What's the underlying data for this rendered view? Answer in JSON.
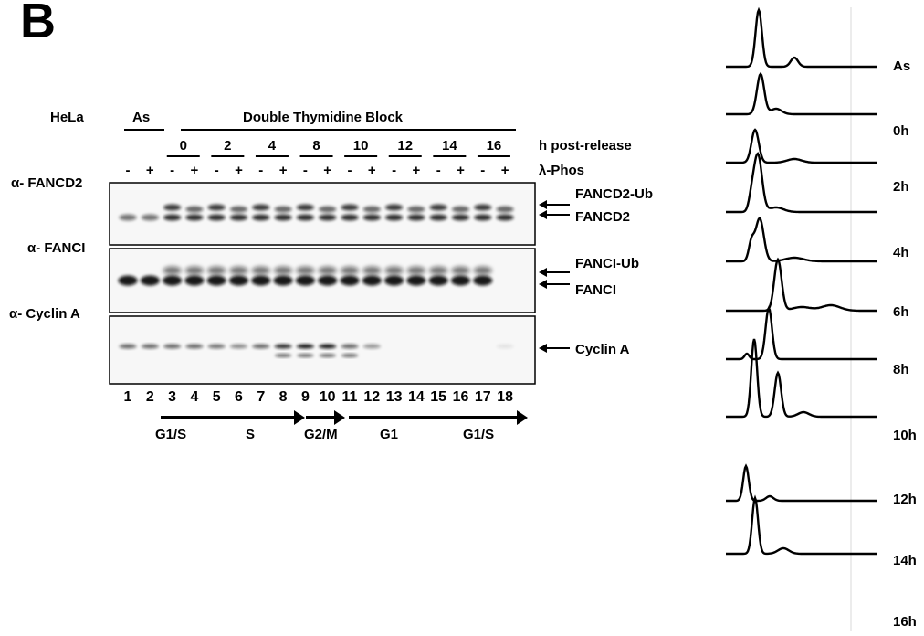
{
  "figure": {
    "panel_label": "B",
    "cell_line": "HeLa",
    "async_label": "As",
    "block_label": "Double Thymidine Block",
    "timepoints": [
      "0",
      "2",
      "4",
      "8",
      "10",
      "12",
      "14",
      "16"
    ],
    "post_release_label": "h post-release",
    "phos_signs": [
      "-",
      "+",
      "-",
      "+",
      "-",
      "+",
      "-",
      "+",
      "-",
      "+",
      "-",
      "+",
      "-",
      "+",
      "-",
      "+",
      "-",
      "+"
    ],
    "phos_label": "λ-Phos",
    "antibodies": [
      "α- FANCD2",
      "α- FANCI",
      "α- Cyclin A"
    ],
    "band_labels": [
      "FANCD2-Ub",
      "FANCD2",
      "FANCI-Ub",
      "FANCI",
      "Cyclin A"
    ],
    "lane_numbers": [
      "1",
      "2",
      "3",
      "4",
      "5",
      "6",
      "7",
      "8",
      "9",
      "10",
      "11",
      "12",
      "13",
      "14",
      "15",
      "16",
      "17",
      "18"
    ],
    "phases": [
      "G1/S",
      "S",
      "G2/M",
      "G1",
      "G1/S"
    ],
    "flow_labels": [
      "As",
      "0h",
      "2h",
      "4h",
      "6h",
      "8h",
      "10h",
      "12h",
      "14h",
      "16h"
    ]
  }
}
